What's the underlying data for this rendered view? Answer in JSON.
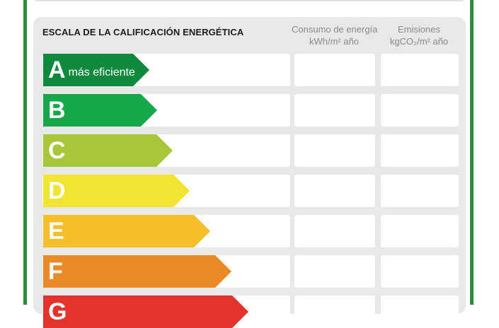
{
  "header": {
    "title": "ESCALA DE LA CALIFICACIÓN ENERGÉTICA",
    "col_energy_line1": "Consumo de energía",
    "col_energy_line2": "kWh/m² año",
    "col_emissions_line1": "Emisiones",
    "col_emissions_line2": "kgCO₂/m² año"
  },
  "colors": {
    "border_green": "#2e8b3a",
    "panel_gray": "#e8e8e8"
  },
  "ratings": [
    {
      "letter": "A",
      "caption": "más eficiente",
      "color": "#0f8a3c"
    },
    {
      "letter": "B",
      "caption": "",
      "color": "#15a84a"
    },
    {
      "letter": "C",
      "caption": "",
      "color": "#a6c73a"
    },
    {
      "letter": "D",
      "caption": "",
      "color": "#f2e531"
    },
    {
      "letter": "E",
      "caption": "",
      "color": "#f6bf2a"
    },
    {
      "letter": "F",
      "caption": "",
      "color": "#ea8a27"
    },
    {
      "letter": "G",
      "caption": "",
      "color": "#e4332d"
    }
  ]
}
